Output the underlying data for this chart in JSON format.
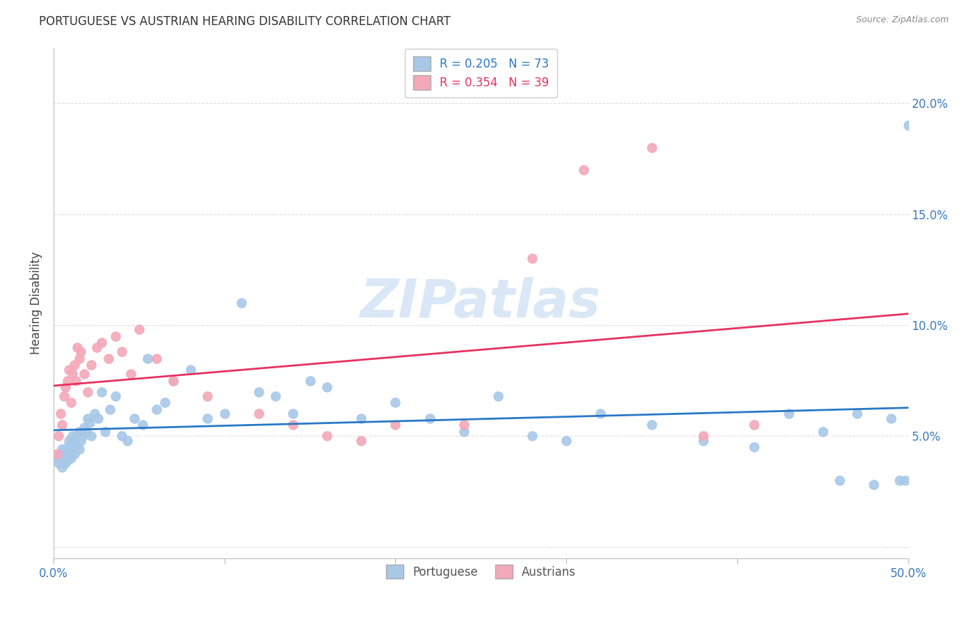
{
  "title": "PORTUGUESE VS AUSTRIAN HEARING DISABILITY CORRELATION CHART",
  "source": "Source: ZipAtlas.com",
  "ylabel": "Hearing Disability",
  "yticks": [
    0.0,
    0.05,
    0.1,
    0.15,
    0.2
  ],
  "ytick_labels": [
    "",
    "5.0%",
    "10.0%",
    "15.0%",
    "20.0%"
  ],
  "xticks": [
    0.0,
    0.1,
    0.2,
    0.3,
    0.4,
    0.5
  ],
  "xlim": [
    0.0,
    0.5
  ],
  "ylim": [
    -0.005,
    0.225
  ],
  "portuguese_color": "#a8c8e8",
  "austrians_color": "#f4a8b8",
  "portuguese_line_color": "#2878c8",
  "austrians_line_color": "#e83060",
  "watermark": "ZIPatlas",
  "portuguese_x": [
    0.002,
    0.003,
    0.004,
    0.005,
    0.005,
    0.006,
    0.006,
    0.007,
    0.007,
    0.008,
    0.008,
    0.009,
    0.009,
    0.01,
    0.01,
    0.011,
    0.011,
    0.012,
    0.012,
    0.013,
    0.014,
    0.015,
    0.015,
    0.016,
    0.017,
    0.018,
    0.019,
    0.02,
    0.021,
    0.022,
    0.024,
    0.026,
    0.028,
    0.03,
    0.033,
    0.036,
    0.04,
    0.043,
    0.047,
    0.052,
    0.055,
    0.06,
    0.065,
    0.07,
    0.08,
    0.09,
    0.1,
    0.11,
    0.12,
    0.13,
    0.14,
    0.15,
    0.16,
    0.18,
    0.2,
    0.22,
    0.24,
    0.26,
    0.28,
    0.3,
    0.32,
    0.35,
    0.38,
    0.41,
    0.43,
    0.45,
    0.46,
    0.47,
    0.48,
    0.49,
    0.495,
    0.498,
    0.5
  ],
  "portuguese_y": [
    0.04,
    0.038,
    0.042,
    0.036,
    0.044,
    0.04,
    0.043,
    0.038,
    0.041,
    0.039,
    0.045,
    0.042,
    0.048,
    0.04,
    0.046,
    0.044,
    0.05,
    0.042,
    0.048,
    0.046,
    0.05,
    0.044,
    0.052,
    0.048,
    0.05,
    0.054,
    0.052,
    0.058,
    0.056,
    0.05,
    0.06,
    0.058,
    0.07,
    0.052,
    0.062,
    0.068,
    0.05,
    0.048,
    0.058,
    0.055,
    0.085,
    0.062,
    0.065,
    0.075,
    0.08,
    0.058,
    0.06,
    0.11,
    0.07,
    0.068,
    0.06,
    0.075,
    0.072,
    0.058,
    0.065,
    0.058,
    0.052,
    0.068,
    0.05,
    0.048,
    0.06,
    0.055,
    0.048,
    0.045,
    0.06,
    0.052,
    0.03,
    0.06,
    0.028,
    0.058,
    0.03,
    0.03,
    0.19
  ],
  "austrians_x": [
    0.002,
    0.003,
    0.004,
    0.005,
    0.006,
    0.007,
    0.008,
    0.009,
    0.01,
    0.011,
    0.012,
    0.013,
    0.014,
    0.015,
    0.016,
    0.018,
    0.02,
    0.022,
    0.025,
    0.028,
    0.032,
    0.036,
    0.04,
    0.045,
    0.05,
    0.06,
    0.07,
    0.09,
    0.12,
    0.14,
    0.16,
    0.18,
    0.2,
    0.24,
    0.28,
    0.31,
    0.35,
    0.38,
    0.41
  ],
  "austrians_y": [
    0.042,
    0.05,
    0.06,
    0.055,
    0.068,
    0.072,
    0.075,
    0.08,
    0.065,
    0.078,
    0.082,
    0.075,
    0.09,
    0.085,
    0.088,
    0.078,
    0.07,
    0.082,
    0.09,
    0.092,
    0.085,
    0.095,
    0.088,
    0.078,
    0.098,
    0.085,
    0.075,
    0.068,
    0.06,
    0.055,
    0.05,
    0.048,
    0.055,
    0.055,
    0.13,
    0.17,
    0.18,
    0.05,
    0.055
  ]
}
